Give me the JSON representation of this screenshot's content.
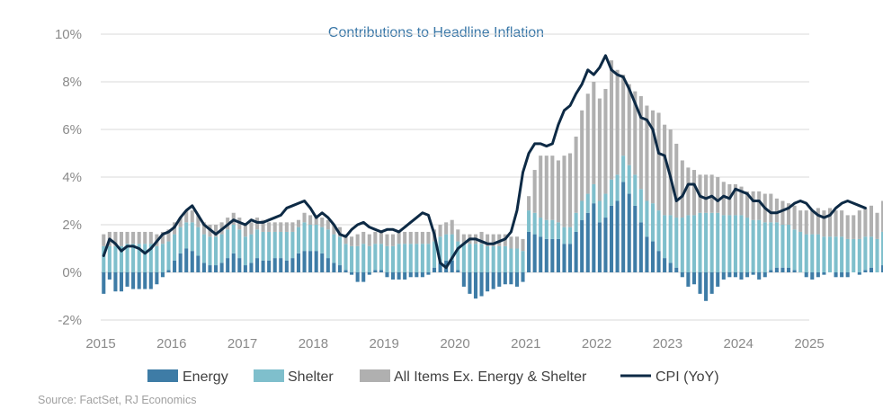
{
  "chart_data": {
    "type": "bar",
    "title": "Contributions to Headline Inflation",
    "source": "Source: FactSet, RJ Economics",
    "xlabel": "",
    "ylabel": "",
    "ylim": [
      -2,
      10
    ],
    "y_ticks": [
      "-2%",
      "0%",
      "2%",
      "4%",
      "6%",
      "8%",
      "10%"
    ],
    "x_ticks": [
      "2015",
      "2016",
      "2017",
      "2018",
      "2019",
      "2020",
      "2021",
      "2022",
      "2023",
      "2024",
      "2025"
    ],
    "grid": true,
    "stacked": true,
    "legend_position": "bottom",
    "colors": {
      "energy": "#3e7ca6",
      "shelter": "#7fbfcc",
      "ex": "#b0b0b0",
      "cpi": "#0d2a45"
    },
    "start_date": "2015-01",
    "series": [
      {
        "name": "Energy",
        "type": "bar",
        "values": [
          -0.9,
          -0.3,
          -0.8,
          -0.8,
          -0.6,
          -0.7,
          -0.7,
          -0.7,
          -0.7,
          -0.5,
          -0.2,
          0.1,
          0.5,
          0.8,
          1.0,
          0.9,
          0.7,
          0.4,
          0.3,
          0.3,
          0.4,
          0.6,
          0.8,
          0.6,
          0.3,
          0.4,
          0.6,
          0.5,
          0.5,
          0.6,
          0.6,
          0.5,
          0.6,
          0.8,
          0.9,
          0.9,
          0.9,
          0.8,
          0.6,
          0.4,
          0.3,
          0.1,
          -0.1,
          -0.4,
          -0.4,
          -0.1,
          0.1,
          0.1,
          -0.2,
          -0.3,
          -0.3,
          -0.3,
          -0.2,
          -0.2,
          -0.2,
          -0.1,
          0.2,
          0.4,
          0.5,
          0.5,
          0.1,
          -0.6,
          -0.9,
          -1.1,
          -1.0,
          -0.8,
          -0.7,
          -0.6,
          -0.5,
          -0.5,
          -0.6,
          -0.4,
          1.7,
          1.6,
          1.5,
          1.4,
          1.4,
          1.4,
          1.2,
          1.2,
          1.7,
          2.2,
          2.5,
          2.9,
          2.1,
          2.3,
          2.8,
          3.0,
          3.8,
          3.3,
          2.8,
          2.1,
          1.5,
          1.3,
          0.9,
          0.6,
          0.4,
          0.2,
          -0.2,
          -0.6,
          -0.5,
          -0.9,
          -1.2,
          -0.9,
          -0.6,
          -0.3,
          -0.2,
          -0.2,
          -0.3,
          -0.2,
          -0.1,
          -0.3,
          -0.2,
          0.1,
          0.2,
          0.2,
          0.2,
          0.1,
          0.0,
          -0.2,
          -0.3,
          -0.2,
          -0.1,
          0.0,
          -0.2,
          -0.2,
          -0.2,
          0.0,
          -0.1,
          0.1,
          0.2,
          0.0,
          0.3
        ]
      },
      {
        "name": "Shelter",
        "type": "bar",
        "values": [
          1.1,
          1.1,
          1.1,
          1.1,
          1.2,
          1.2,
          1.2,
          1.2,
          1.2,
          1.1,
          1.2,
          1.2,
          1.1,
          1.1,
          1.1,
          1.2,
          1.2,
          1.2,
          1.2,
          1.2,
          1.2,
          1.2,
          1.2,
          1.2,
          1.2,
          1.2,
          1.2,
          1.2,
          1.2,
          1.1,
          1.1,
          1.2,
          1.1,
          1.1,
          1.2,
          1.1,
          1.1,
          1.1,
          1.2,
          1.2,
          1.2,
          1.1,
          1.1,
          1.1,
          1.2,
          1.1,
          1.1,
          1.1,
          1.1,
          1.1,
          1.2,
          1.2,
          1.2,
          1.2,
          1.2,
          1.2,
          1.1,
          1.1,
          1.1,
          1.1,
          1.2,
          1.2,
          1.2,
          1.2,
          1.2,
          1.1,
          1.1,
          1.1,
          1.1,
          1.0,
          1.0,
          0.9,
          0.9,
          0.9,
          0.8,
          0.8,
          0.8,
          0.7,
          0.7,
          0.7,
          0.8,
          0.8,
          0.8,
          0.8,
          0.9,
          1.0,
          1.1,
          1.1,
          1.1,
          1.2,
          1.3,
          1.4,
          1.5,
          1.6,
          1.7,
          1.8,
          2.0,
          2.1,
          2.3,
          2.4,
          2.4,
          2.5,
          2.5,
          2.5,
          2.5,
          2.4,
          2.4,
          2.4,
          2.4,
          2.3,
          2.2,
          2.2,
          2.1,
          2.0,
          1.9,
          1.8,
          1.8,
          1.7,
          1.7,
          1.6,
          1.6,
          1.6,
          1.5,
          1.5,
          1.5,
          1.5,
          1.4,
          1.4,
          1.4,
          1.4,
          1.3,
          1.4,
          1.4,
          1.4,
          1.4
        ]
      },
      {
        "name": "All Items Ex. Energy & Shelter",
        "type": "bar",
        "values": [
          0.5,
          0.6,
          0.6,
          0.6,
          0.5,
          0.5,
          0.5,
          0.5,
          0.5,
          0.5,
          0.5,
          0.5,
          0.5,
          0.4,
          0.5,
          0.5,
          0.5,
          0.5,
          0.5,
          0.5,
          0.5,
          0.5,
          0.5,
          0.5,
          0.5,
          0.5,
          0.5,
          0.5,
          0.4,
          0.4,
          0.4,
          0.4,
          0.4,
          0.3,
          0.4,
          0.4,
          0.4,
          0.4,
          0.4,
          0.4,
          0.4,
          0.4,
          0.4,
          0.5,
          0.5,
          0.5,
          0.5,
          0.5,
          0.5,
          0.5,
          0.5,
          0.5,
          0.5,
          0.5,
          0.5,
          0.5,
          0.5,
          0.5,
          0.5,
          0.6,
          0.5,
          0.4,
          0.4,
          0.4,
          0.5,
          0.5,
          0.5,
          0.5,
          0.5,
          0.5,
          0.5,
          0.5,
          0.6,
          1.8,
          2.6,
          2.7,
          2.7,
          2.6,
          3.0,
          3.1,
          3.2,
          3.8,
          4.2,
          4.3,
          4.3,
          4.4,
          5.0,
          4.4,
          3.4,
          3.4,
          3.5,
          3.9,
          4.0,
          3.9,
          4.1,
          3.8,
          3.6,
          3.1,
          2.4,
          2.0,
          1.9,
          1.6,
          1.6,
          1.6,
          1.5,
          1.4,
          1.3,
          1.3,
          1.2,
          1.1,
          1.2,
          1.2,
          1.2,
          1.2,
          1.0,
          1.0,
          0.9,
          1.0,
          0.9,
          1.0,
          1.0,
          1.1,
          1.1,
          1.2,
          1.1,
          1.1,
          1.0,
          1.0,
          1.2,
          1.2,
          1.3,
          1.1,
          1.3,
          1.3,
          1.3,
          1.3
        ]
      },
      {
        "name": "CPI (YoY)",
        "type": "line",
        "values": [
          0.7,
          1.4,
          1.2,
          0.9,
          1.1,
          1.1,
          1.0,
          0.8,
          1.0,
          1.3,
          1.6,
          1.7,
          1.9,
          2.3,
          2.6,
          2.8,
          2.4,
          2.0,
          1.8,
          1.6,
          1.8,
          2.0,
          2.2,
          2.1,
          2.0,
          2.2,
          2.1,
          2.1,
          2.2,
          2.3,
          2.4,
          2.7,
          2.8,
          2.9,
          3.0,
          2.7,
          2.3,
          2.5,
          2.3,
          2.0,
          1.6,
          1.5,
          1.8,
          2.0,
          2.1,
          1.9,
          1.8,
          1.7,
          1.8,
          1.8,
          1.7,
          1.9,
          2.1,
          2.3,
          2.5,
          2.4,
          1.6,
          0.4,
          0.2,
          0.6,
          1.0,
          1.2,
          1.4,
          1.4,
          1.3,
          1.2,
          1.2,
          1.3,
          1.4,
          1.7,
          2.6,
          4.2,
          5.0,
          5.4,
          5.4,
          5.3,
          5.4,
          6.2,
          6.8,
          7.0,
          7.5,
          7.9,
          8.5,
          8.3,
          8.6,
          9.1,
          8.5,
          8.3,
          8.2,
          7.7,
          7.1,
          6.5,
          6.4,
          6.0,
          5.0,
          4.9,
          4.0,
          3.0,
          3.2,
          3.7,
          3.7,
          3.2,
          3.1,
          3.2,
          3.0,
          3.2,
          3.1,
          3.5,
          3.4,
          3.3,
          3.0,
          3.0,
          2.7,
          2.5,
          2.5,
          2.6,
          2.7,
          2.9,
          3.0,
          2.9,
          2.6,
          2.4,
          2.3,
          2.4,
          2.7,
          2.9,
          3.0,
          2.9,
          2.8,
          2.7
        ]
      }
    ]
  }
}
